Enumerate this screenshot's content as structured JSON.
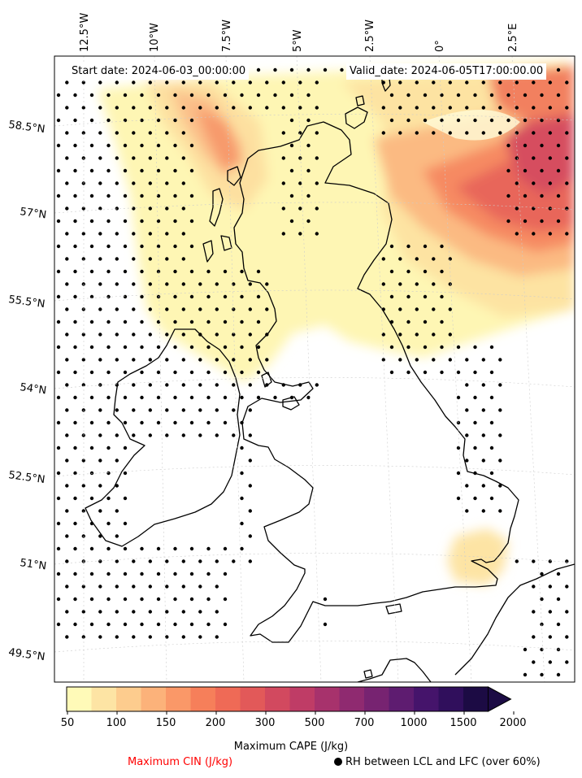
{
  "map": {
    "start_date": "Start date: 2024-06-03_00:00:00",
    "valid_date": "Valid_date: 2024-06-05T17:00:00.00",
    "lon_labels": [
      "12.5°W",
      "10°W",
      "7.5°W",
      "5°W",
      "2.5°W",
      "0°",
      "2.5°E"
    ],
    "lat_labels": [
      "58.5°N",
      "57°N",
      "55.5°N",
      "54°N",
      "52.5°N",
      "51°N",
      "49.5°N"
    ]
  },
  "colorbar": {
    "ticks": [
      "50",
      "100",
      "150",
      "200",
      "300",
      "500",
      "700",
      "1000",
      "1500",
      "2000"
    ],
    "colors": [
      "#fffab8",
      "#fde4a4",
      "#fdcc8e",
      "#fcb27a",
      "#fa9868",
      "#f67f5a",
      "#ef6a56",
      "#e25959",
      "#d2495f",
      "#bf3c66",
      "#a7326c",
      "#8f2a70",
      "#772371",
      "#5e1c70",
      "#45146b",
      "#300f5c",
      "#1c0b44"
    ],
    "cape_label": "Maximum CAPE (J/kg)",
    "cin_label": "Maximum CIN (J/kg)",
    "cin_color": "#ff0000",
    "rh_label": "RH between LCL and LFC (over 60%)"
  }
}
